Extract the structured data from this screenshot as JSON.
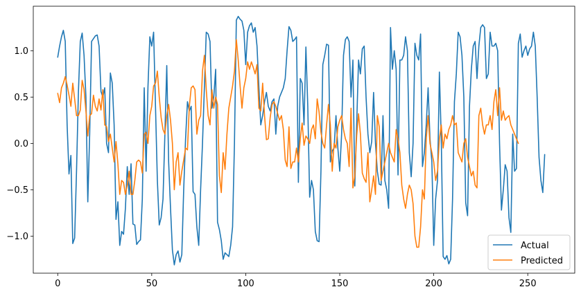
{
  "chart_data": {
    "type": "line",
    "title": "",
    "xlabel": "",
    "ylabel": "",
    "xlim": [
      -13,
      275
    ],
    "ylim": [
      -1.4,
      1.48
    ],
    "xticks": [
      0,
      50,
      100,
      150,
      200,
      250
    ],
    "yticks": [
      -1.0,
      -0.5,
      0.0,
      0.5,
      1.0
    ],
    "xtick_labels": [
      "0",
      "50",
      "100",
      "150",
      "200",
      "250"
    ],
    "ytick_labels": [
      "−1.0",
      "−0.5",
      "0.0",
      "0.5",
      "1.0"
    ],
    "grid": false,
    "legend_position": "bottom-right",
    "series": [
      {
        "name": "Actual",
        "color": "#1f77b4",
        "values": [
          0.93,
          1.05,
          1.15,
          1.22,
          1.1,
          0.2,
          -0.33,
          -0.13,
          -1.08,
          -1.02,
          -0.3,
          0.55,
          1.1,
          1.19,
          0.95,
          0.5,
          -0.63,
          0.1,
          1.1,
          1.13,
          1.16,
          1.17,
          1.05,
          0.56,
          0.5,
          0.6,
          0.0,
          -0.1,
          0.76,
          0.65,
          0.2,
          -0.82,
          -0.63,
          -1.1,
          -0.95,
          -0.98,
          -0.7,
          -0.25,
          -0.55,
          -0.22,
          -0.87,
          -0.88,
          -1.09,
          -1.06,
          -1.04,
          -0.6,
          0.6,
          -0.3,
          0.61,
          1.15,
          1.05,
          1.2,
          0.4,
          -0.4,
          -0.88,
          -0.8,
          -0.6,
          0.1,
          0.84,
          -0.2,
          -0.7,
          -1.15,
          -1.31,
          -1.2,
          -1.16,
          -1.28,
          -1.2,
          -0.5,
          0.05,
          0.45,
          0.35,
          0.4,
          -0.52,
          -0.55,
          -0.9,
          -1.1,
          -0.5,
          0.0,
          0.6,
          1.2,
          1.18,
          1.1,
          0.38,
          0.5,
          0.8,
          -0.85,
          -0.93,
          -1.05,
          -1.25,
          -1.18,
          -1.2,
          -1.22,
          -1.1,
          -0.9,
          0.0,
          1.33,
          1.37,
          1.34,
          1.32,
          1.22,
          0.85,
          1.2,
          1.27,
          1.3,
          1.2,
          1.25,
          1.05,
          0.6,
          0.2,
          0.3,
          0.45,
          0.55,
          0.4,
          0.35,
          0.45,
          0.48,
          0.1,
          0.4,
          0.5,
          0.55,
          0.6,
          0.7,
          1.0,
          1.26,
          1.22,
          1.1,
          1.12,
          1.15,
          -0.42,
          0.7,
          0.65,
          0.2,
          1.04,
          0.4,
          -0.58,
          -0.4,
          -0.5,
          -0.95,
          -1.05,
          -1.06,
          -0.3,
          0.85,
          0.95,
          1.07,
          1.06,
          -0.2,
          -0.08,
          -0.05,
          0.3,
          -0.05,
          -0.3,
          0.1,
          0.95,
          1.12,
          1.15,
          1.1,
          0.5,
          0.9,
          -0.46,
          0.2,
          0.9,
          0.75,
          1.02,
          1.05,
          0.5,
          0.1,
          -0.1,
          0.02,
          0.55,
          0.0,
          -0.3,
          -0.44,
          -0.45,
          0.3,
          -0.4,
          -0.5,
          -0.7,
          1.25,
          0.8,
          1.0,
          0.8,
          -0.34,
          0.9,
          0.9,
          0.95,
          1.15,
          1.0,
          -0.1,
          -0.36,
          0.0,
          1.08,
          0.95,
          0.9,
          1.18,
          -0.25,
          -0.1,
          0.2,
          0.6,
          0.05,
          -0.2,
          -1.1,
          -0.6,
          -0.4,
          0.77,
          0.05,
          -1.22,
          -1.25,
          -1.21,
          -1.3,
          -1.25,
          -0.6,
          0.45,
          0.75,
          1.2,
          1.15,
          0.95,
          0.5,
          -0.64,
          -0.78,
          0.4,
          0.8,
          1.05,
          1.1,
          0.7,
          1.05,
          1.25,
          1.28,
          1.25,
          0.7,
          0.75,
          1.2,
          1.05,
          1.05,
          1.08,
          1.0,
          0.0,
          -0.72,
          -0.5,
          -0.23,
          -0.3,
          -0.8,
          -0.96,
          0.1,
          -0.3,
          -0.27,
          1.08,
          1.18,
          0.93,
          1.0,
          1.05,
          0.95,
          1.02,
          1.05,
          1.2,
          1.05,
          0.5,
          -0.15,
          -0.4,
          -0.53,
          -0.12
        ]
      },
      {
        "name": "Predicted",
        "color": "#ff7f0e",
        "values": [
          0.54,
          0.44,
          0.6,
          0.65,
          0.72,
          0.63,
          0.52,
          0.4,
          0.65,
          0.48,
          0.3,
          0.3,
          0.36,
          0.68,
          0.58,
          0.35,
          0.08,
          0.3,
          0.32,
          0.52,
          0.4,
          0.35,
          0.48,
          0.36,
          0.58,
          0.2,
          0.18,
          0.02,
          0.1,
          -0.05,
          -0.2,
          0.02,
          -0.22,
          -0.55,
          -0.4,
          -0.42,
          -0.55,
          -0.45,
          -0.3,
          -0.55,
          -0.55,
          -0.4,
          -0.2,
          -0.18,
          -0.2,
          -0.32,
          0.1,
          0.12,
          0.0,
          0.3,
          0.4,
          0.62,
          0.65,
          0.78,
          0.5,
          0.28,
          0.15,
          0.1,
          0.3,
          0.42,
          0.25,
          0.0,
          -0.5,
          -0.2,
          -0.1,
          -0.45,
          -0.3,
          -0.18,
          -0.05,
          -0.07,
          0.4,
          0.6,
          0.62,
          0.58,
          0.1,
          0.25,
          0.3,
          0.78,
          0.95,
          0.58,
          0.3,
          0.2,
          0.58,
          0.38,
          0.5,
          0.42,
          -0.35,
          -0.53,
          -0.1,
          -0.28,
          0.1,
          0.38,
          0.5,
          0.62,
          0.78,
          1.12,
          0.9,
          0.62,
          0.38,
          0.6,
          0.7,
          0.88,
          0.8,
          0.88,
          0.82,
          0.75,
          0.85,
          0.38,
          0.35,
          0.65,
          0.3,
          0.04,
          0.05,
          0.28,
          0.42,
          0.45,
          0.4,
          0.32,
          0.25,
          0.3,
          0.15,
          -0.18,
          -0.25,
          0.18,
          -0.27,
          -0.2,
          -0.2,
          -0.05,
          -0.2,
          0.05,
          0.22,
          -0.02,
          0.08,
          0.05,
          0.0,
          0.15,
          0.2,
          0.05,
          0.48,
          0.34,
          0.12,
          0.0,
          -0.05,
          0.2,
          0.42,
          0.2,
          -0.3,
          0.0,
          -0.05,
          0.18,
          0.25,
          0.3,
          0.15,
          0.05,
          0.0,
          -0.25,
          0.38,
          -0.48,
          -0.35,
          0.08,
          0.32,
          0.1,
          -0.32,
          -0.38,
          -0.42,
          -0.1,
          -0.63,
          -0.5,
          -0.35,
          -0.55,
          0.3,
          0.18,
          -0.4,
          -0.3,
          -0.2,
          -0.1,
          0.0,
          -0.1,
          -0.15,
          -0.2,
          0.15,
          0.05,
          -0.1,
          -0.45,
          -0.6,
          -0.7,
          -0.55,
          -0.45,
          -0.5,
          -0.65,
          -1.0,
          -1.12,
          -1.12,
          -0.9,
          -0.5,
          -0.6,
          0.05,
          0.3,
          0.0,
          -0.1,
          -0.2,
          -0.4,
          -0.3,
          0.05,
          0.2,
          -0.05,
          0.1,
          0.05,
          0.15,
          0.2,
          0.3,
          0.2,
          0.22,
          -0.1,
          -0.15,
          -0.2,
          0.0,
          0.05,
          -0.15,
          -0.25,
          -0.35,
          -0.3,
          -0.45,
          -0.48,
          0.3,
          0.38,
          0.2,
          0.1,
          0.2,
          0.2,
          0.3,
          0.15,
          0.45,
          0.58,
          0.3,
          0.6,
          0.25,
          0.35,
          0.25,
          0.28,
          0.3,
          0.2,
          0.15,
          0.1,
          0.05,
          0.0
        ]
      }
    ]
  }
}
